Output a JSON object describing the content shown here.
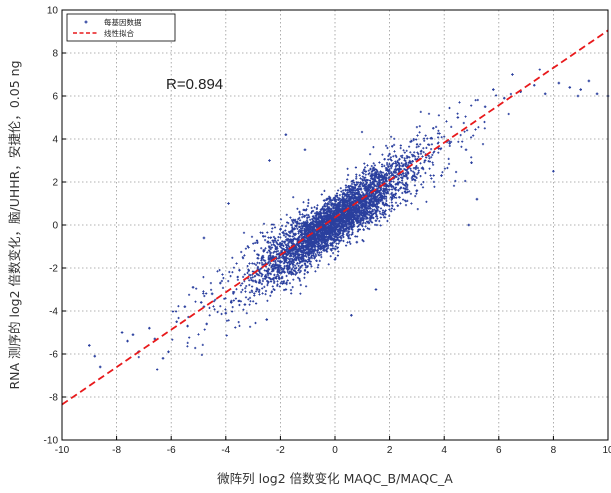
{
  "chart_data": {
    "type": "scatter",
    "xlabel": "微阵列 log2 倍数变化 MAQC_B/MAQC_A",
    "ylabel": "RNA 测序的 log2 倍数变化，脑/UHHR，安捷伦，0.05 ng",
    "xlim": [
      -10,
      10
    ],
    "ylim": [
      -10,
      10
    ],
    "xticks": [
      -10,
      -8,
      -6,
      -4,
      -2,
      0,
      2,
      4,
      6,
      8,
      10
    ],
    "yticks": [
      -10,
      -8,
      -6,
      -4,
      -2,
      0,
      2,
      4,
      6,
      8,
      10
    ],
    "xtick_labels": [
      "-10",
      "-8",
      "-6",
      "-4",
      "-2",
      "0",
      "2",
      "4",
      "6",
      "8",
      "10"
    ],
    "ytick_labels": [
      "-10",
      "-8",
      "-6",
      "-4",
      "-2",
      "0",
      "2",
      "4",
      "6",
      "8",
      "10"
    ],
    "grid": true,
    "legend_position": "top-left",
    "annotation": "R=0.894",
    "series": [
      {
        "name": "每基因数据",
        "type": "scatter",
        "marker": "dot",
        "color": "#2a3f9e",
        "points": [
          [
            -9.0,
            -5.6
          ],
          [
            -8.8,
            -6.1
          ],
          [
            -8.6,
            -6.6
          ],
          [
            -7.8,
            -5.0
          ],
          [
            -7.6,
            -5.4
          ],
          [
            -7.4,
            -5.1
          ],
          [
            -7.2,
            -5.9
          ],
          [
            -6.8,
            -4.8
          ],
          [
            -6.6,
            -5.3
          ],
          [
            -6.1,
            -5.9
          ],
          [
            -5.8,
            -4.5
          ],
          [
            -5.5,
            -3.8
          ],
          [
            -5.4,
            -4.7
          ],
          [
            -5.2,
            -2.9
          ],
          [
            -4.9,
            -3.6
          ],
          [
            -4.8,
            -3.8
          ],
          [
            -4.7,
            -4.6
          ],
          [
            -4.5,
            -3.2
          ],
          [
            -4.2,
            -2.7
          ],
          [
            -4.0,
            -4.1
          ],
          [
            -3.8,
            -3.6
          ],
          [
            -3.5,
            -2.1
          ],
          [
            -3.3,
            -3.7
          ],
          [
            -3.0,
            -2.6
          ],
          [
            -2.8,
            -1.4
          ],
          [
            -2.5,
            -4.4
          ],
          [
            -2.3,
            -1.9
          ],
          [
            -2.0,
            -0.2
          ],
          [
            -1.8,
            -3.0
          ],
          [
            -1.5,
            -0.9
          ],
          [
            -1.3,
            0.6
          ],
          [
            -1.0,
            -2.2
          ],
          [
            -0.8,
            0.4
          ],
          [
            -0.5,
            -0.1
          ],
          [
            -0.3,
            1.2
          ],
          [
            0.0,
            -1.6
          ],
          [
            0.2,
            0.3
          ],
          [
            0.5,
            1.8
          ],
          [
            0.8,
            -0.8
          ],
          [
            1.0,
            1.1
          ],
          [
            1.3,
            2.6
          ],
          [
            1.5,
            0.2
          ],
          [
            1.8,
            1.9
          ],
          [
            2.0,
            3.3
          ],
          [
            2.3,
            0.9
          ],
          [
            2.5,
            2.4
          ],
          [
            2.8,
            3.9
          ],
          [
            3.0,
            1.6
          ],
          [
            3.3,
            3.0
          ],
          [
            3.6,
            4.5
          ],
          [
            3.9,
            2.3
          ],
          [
            4.2,
            3.8
          ],
          [
            4.5,
            5.0
          ],
          [
            4.8,
            3.5
          ],
          [
            5.0,
            2.9
          ],
          [
            5.5,
            5.5
          ],
          [
            5.8,
            6.3
          ],
          [
            6.2,
            5.9
          ],
          [
            6.5,
            7.0
          ],
          [
            6.8,
            6.2
          ],
          [
            7.3,
            6.5
          ],
          [
            7.7,
            6.1
          ],
          [
            8.0,
            2.5
          ],
          [
            8.2,
            6.6
          ],
          [
            8.6,
            6.4
          ],
          [
            8.9,
            6.0
          ],
          [
            9.0,
            6.3
          ],
          [
            9.3,
            6.7
          ],
          [
            9.6,
            6.1
          ],
          [
            10.0,
            6.0
          ],
          [
            4.9,
            0.0
          ],
          [
            5.2,
            1.2
          ],
          [
            -2.4,
            3.0
          ],
          [
            -1.1,
            3.5
          ],
          [
            -3.9,
            1.0
          ],
          [
            -4.8,
            -0.6
          ],
          [
            -6.3,
            -6.2
          ],
          [
            1.5,
            -3.0
          ],
          [
            -1.8,
            4.2
          ],
          [
            0.6,
            -4.2
          ]
        ]
      },
      {
        "name": "线性拟合",
        "type": "line",
        "style": "dashed",
        "color": "#e8191b",
        "slope": 0.87,
        "intercept": 0.35
      }
    ]
  }
}
